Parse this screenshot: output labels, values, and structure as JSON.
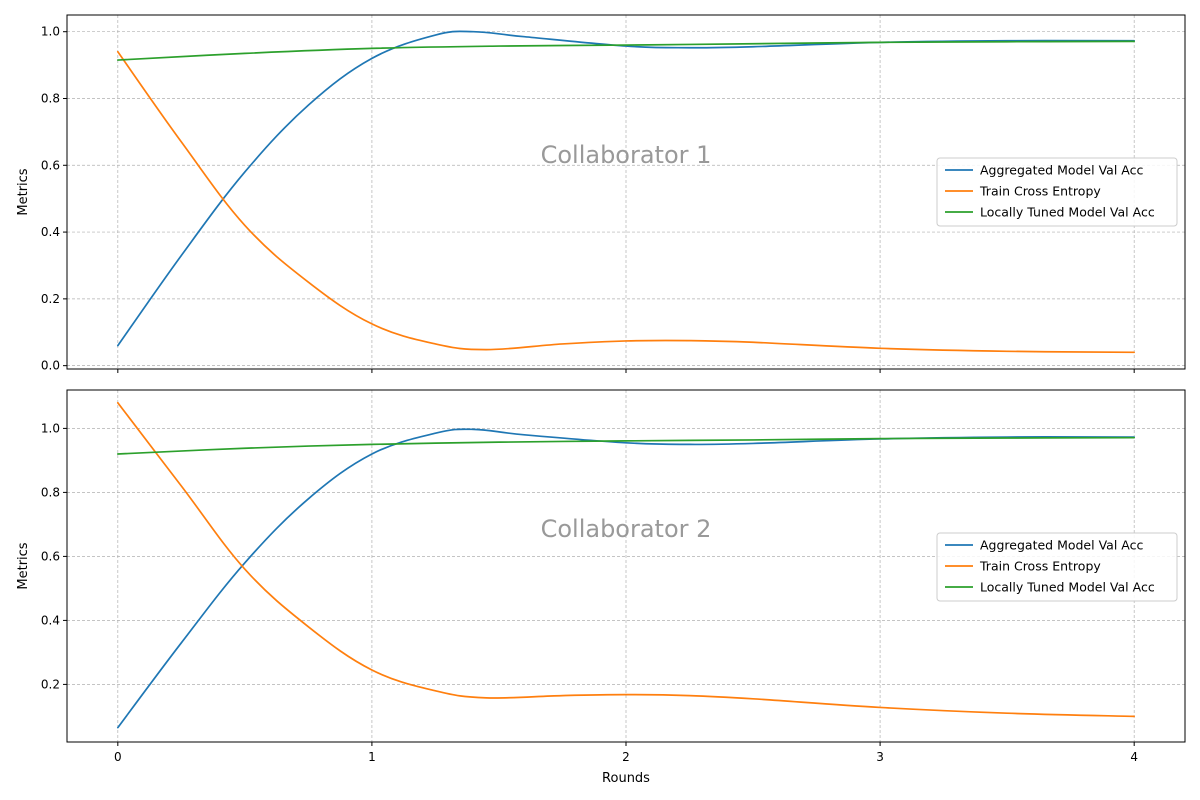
{
  "chart_data": [
    {
      "type": "line",
      "annotation": "Collaborator 1",
      "ylabel": "Metrics",
      "xlabel": "",
      "x_ticks": [
        "0",
        "1",
        "2",
        "3",
        "4"
      ],
      "y_ticks": [
        "0.0",
        "0.2",
        "0.4",
        "0.6",
        "0.8",
        "1.0"
      ],
      "xlim": [
        -0.2,
        4.2
      ],
      "ylim": [
        -0.01,
        1.05
      ],
      "grid": true,
      "legend_location": "center-right",
      "series": [
        {
          "name": "Aggregated Model Val Acc",
          "color": "#1f77b4",
          "x": [
            0,
            0.25,
            0.5,
            0.75,
            1.0,
            1.25,
            1.4,
            1.6,
            2.0,
            2.25,
            2.5,
            3.0,
            3.5,
            4.0
          ],
          "y": [
            0.06,
            0.33,
            0.58,
            0.78,
            0.92,
            0.99,
            1.0,
            0.985,
            0.957,
            0.952,
            0.955,
            0.968,
            0.973,
            0.973
          ]
        },
        {
          "name": "Train Cross Entropy",
          "color": "#ff7f0e",
          "x": [
            0,
            0.25,
            0.5,
            0.75,
            1.0,
            1.25,
            1.45,
            1.75,
            2.0,
            2.25,
            2.5,
            3.0,
            3.5,
            4.0
          ],
          "y": [
            0.94,
            0.67,
            0.42,
            0.25,
            0.125,
            0.065,
            0.048,
            0.065,
            0.074,
            0.075,
            0.07,
            0.052,
            0.043,
            0.04
          ]
        },
        {
          "name": "Locally Tuned Model Val Acc",
          "color": "#2ca02c",
          "x": [
            0,
            0.5,
            1.0,
            1.5,
            2.0,
            2.5,
            3.0,
            3.5,
            4.0
          ],
          "y": [
            0.915,
            0.935,
            0.95,
            0.957,
            0.96,
            0.964,
            0.968,
            0.97,
            0.971
          ]
        }
      ]
    },
    {
      "type": "line",
      "annotation": "Collaborator 2",
      "ylabel": "Metrics",
      "xlabel": "Rounds",
      "x_ticks": [
        "0",
        "1",
        "2",
        "3",
        "4"
      ],
      "y_ticks": [
        "0.2",
        "0.4",
        "0.6",
        "0.8",
        "1.0"
      ],
      "xlim": [
        -0.2,
        4.2
      ],
      "ylim": [
        0.02,
        1.12
      ],
      "grid": true,
      "legend_location": "center-right",
      "series": [
        {
          "name": "Aggregated Model Val Acc",
          "color": "#1f77b4",
          "x": [
            0,
            0.25,
            0.5,
            0.75,
            1.0,
            1.25,
            1.4,
            1.6,
            2.0,
            2.25,
            2.5,
            3.0,
            3.5,
            4.0
          ],
          "y": [
            0.065,
            0.33,
            0.58,
            0.78,
            0.92,
            0.985,
            0.997,
            0.98,
            0.955,
            0.95,
            0.953,
            0.967,
            0.973,
            0.973
          ]
        },
        {
          "name": "Train Cross Entropy",
          "color": "#ff7f0e",
          "x": [
            0,
            0.25,
            0.5,
            0.75,
            1.0,
            1.25,
            1.45,
            1.75,
            2.0,
            2.25,
            2.5,
            3.0,
            3.5,
            4.0
          ],
          "y": [
            1.08,
            0.82,
            0.56,
            0.38,
            0.245,
            0.18,
            0.158,
            0.165,
            0.168,
            0.165,
            0.155,
            0.128,
            0.11,
            0.1
          ]
        },
        {
          "name": "Locally Tuned Model Val Acc",
          "color": "#2ca02c",
          "x": [
            0,
            0.5,
            1.0,
            1.5,
            2.0,
            2.5,
            3.0,
            3.5,
            4.0
          ],
          "y": [
            0.92,
            0.938,
            0.95,
            0.957,
            0.961,
            0.964,
            0.968,
            0.97,
            0.971
          ]
        }
      ]
    }
  ]
}
